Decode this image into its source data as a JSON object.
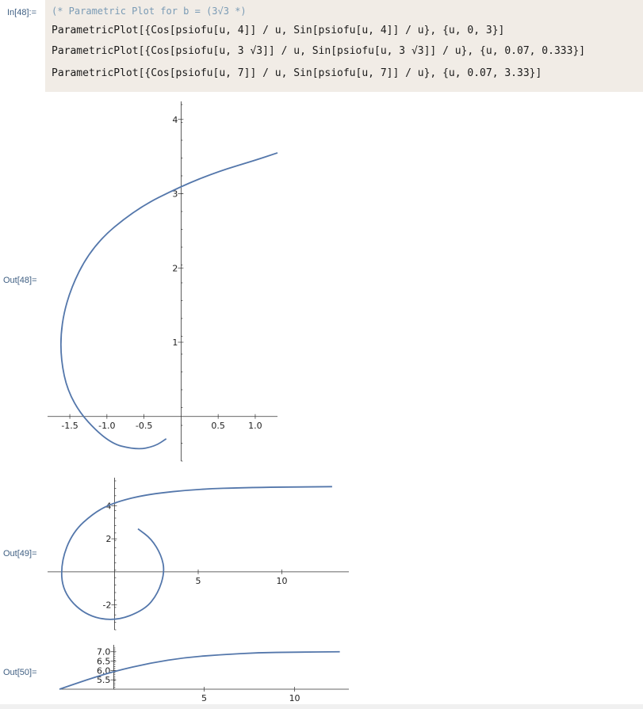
{
  "input": {
    "label": "In[48]:=",
    "comment_prefix": "(* Parametric Plot for b = ",
    "comment_b": "(3",
    "comment_sqrt": "√3",
    "comment_suffix": " *)",
    "lines": [
      "ParametricPlot[{Cos[psiofu[u, 4]] / u, Sin[psiofu[u, 4]] / u}, {u, 0, 3}]",
      "ParametricPlot[{Cos[psiofu[u, 3 √3]] / u, Sin[psiofu[u, 3 √3]] / u}, {u, 0.07, 0.333}]",
      "ParametricPlot[{Cos[psiofu[u, 7]] / u, Sin[psiofu[u, 7]] / u}, {u, 0.07, 3.33}]"
    ]
  },
  "outputs": [
    {
      "label": "Out[48]="
    },
    {
      "label": "Out[49]="
    },
    {
      "label": "Out[50]="
    }
  ],
  "colors": {
    "curve": "#5477ab",
    "input_bg": "#f1ece6",
    "label": "#3f5f83"
  },
  "chart_data": [
    {
      "type": "line",
      "x_ticks": [
        "-1.5",
        "-1.0",
        "-0.5",
        "0.5",
        "1.0"
      ],
      "y_ticks": [
        "1",
        "2",
        "3",
        "4"
      ],
      "xlim": [
        -1.8,
        1.3
      ],
      "ylim": [
        -0.6,
        4.2
      ],
      "series": [
        {
          "x": [
            -0.2,
            -0.35,
            -0.6,
            -1.0,
            -1.5,
            -1.65,
            -1.55,
            -1.2,
            -0.6,
            0.0,
            0.5,
            1.0,
            1.3
          ],
          "y": [
            -0.3,
            -0.4,
            -0.45,
            -0.35,
            0.2,
            0.9,
            1.6,
            2.3,
            2.8,
            3.1,
            3.3,
            3.45,
            3.55
          ]
        }
      ]
    },
    {
      "type": "line",
      "x_ticks": [
        "5",
        "10"
      ],
      "y_ticks": [
        "4",
        "2",
        "-2"
      ],
      "xlim": [
        -4,
        14
      ],
      "ylim": [
        -3.5,
        5.5
      ],
      "series": [
        {
          "x": [
            1.4,
            2.2,
            2.8,
            3.0,
            2.6,
            1.8,
            0.0,
            -1.8,
            -3.1,
            -3.2,
            -2.5,
            -1.2,
            0.0,
            2.0,
            5.0,
            8.0,
            13.0
          ],
          "y": [
            2.6,
            2.0,
            1.0,
            0.0,
            -1.3,
            -2.3,
            -3.0,
            -2.6,
            -1.2,
            0.6,
            2.4,
            3.6,
            4.2,
            4.7,
            5.0,
            5.1,
            5.15
          ]
        }
      ]
    },
    {
      "type": "line",
      "x_ticks": [
        "5",
        "10"
      ],
      "y_ticks": [
        "7.0",
        "6.5",
        "6.0",
        "5.5"
      ],
      "xlim": [
        -3,
        13
      ],
      "ylim": [
        5.0,
        7.2
      ],
      "series": [
        {
          "x": [
            -3.0,
            -1.5,
            0.0,
            2.0,
            4.0,
            6.0,
            8.0,
            10.0,
            12.5
          ],
          "y": [
            5.0,
            5.5,
            5.95,
            6.4,
            6.7,
            6.85,
            6.95,
            6.98,
            7.0
          ]
        }
      ]
    }
  ]
}
